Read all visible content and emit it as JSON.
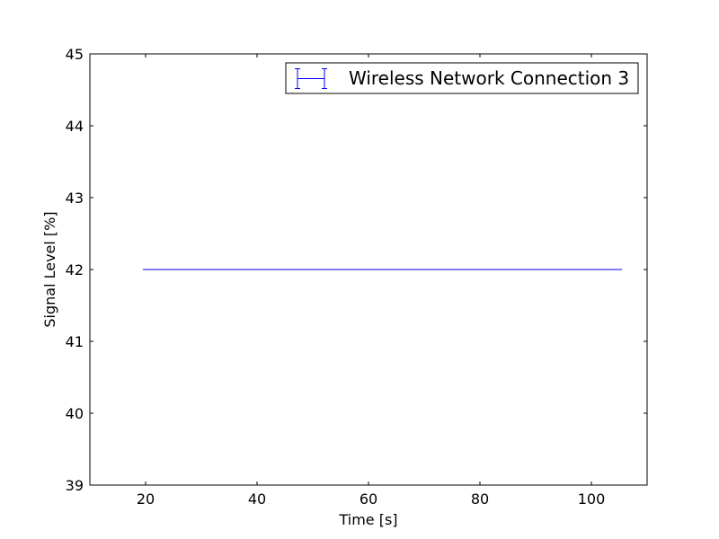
{
  "chart_data": {
    "type": "line",
    "title": "",
    "xlabel": "Time [s]",
    "ylabel": "Signal Level [%]",
    "xlim": [
      10,
      110
    ],
    "ylim": [
      39,
      45
    ],
    "x_ticks": [
      20,
      40,
      60,
      80,
      100
    ],
    "y_ticks": [
      39,
      40,
      41,
      42,
      43,
      44,
      45
    ],
    "grid": false,
    "legend_position": "top-right",
    "series": [
      {
        "name": "Wireless Network Connection 3",
        "style": "errorbar",
        "color": "#0000ff",
        "x": [
          19.5,
          105.5
        ],
        "y": [
          42,
          42
        ]
      }
    ]
  }
}
